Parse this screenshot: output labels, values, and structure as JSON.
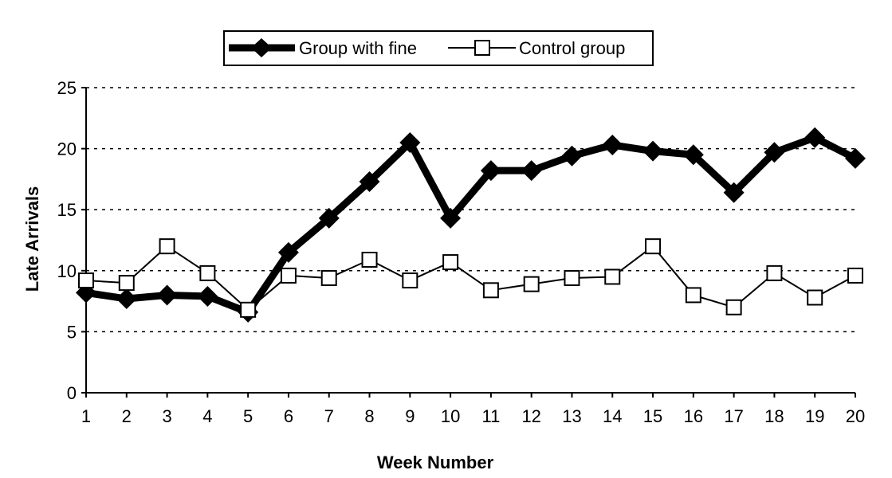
{
  "chart_data": {
    "type": "line",
    "title": "",
    "xlabel": "Week Number",
    "ylabel": "Late Arrivals",
    "x": [
      1,
      2,
      3,
      4,
      5,
      6,
      7,
      8,
      9,
      10,
      11,
      12,
      13,
      14,
      15,
      16,
      17,
      18,
      19,
      20
    ],
    "ylim": [
      0,
      25
    ],
    "yticks": [
      0,
      5,
      10,
      15,
      20,
      25
    ],
    "grid": "horizontal dashed",
    "legend_position": "top-center",
    "series": [
      {
        "name": "Group with fine",
        "marker": "filled-diamond",
        "color": "#000000",
        "values": [
          8.2,
          7.7,
          8.0,
          7.9,
          6.6,
          11.5,
          14.3,
          17.3,
          20.5,
          14.3,
          18.2,
          18.2,
          19.4,
          20.3,
          19.8,
          19.5,
          16.4,
          19.7,
          20.9,
          19.2
        ]
      },
      {
        "name": "Control group",
        "marker": "hollow-square",
        "color": "#000000",
        "values": [
          9.2,
          9.0,
          12.0,
          9.8,
          6.8,
          9.6,
          9.4,
          10.9,
          9.2,
          10.7,
          8.4,
          8.9,
          9.4,
          9.5,
          12.0,
          8.0,
          7.0,
          9.8,
          7.8,
          9.6
        ]
      }
    ]
  }
}
